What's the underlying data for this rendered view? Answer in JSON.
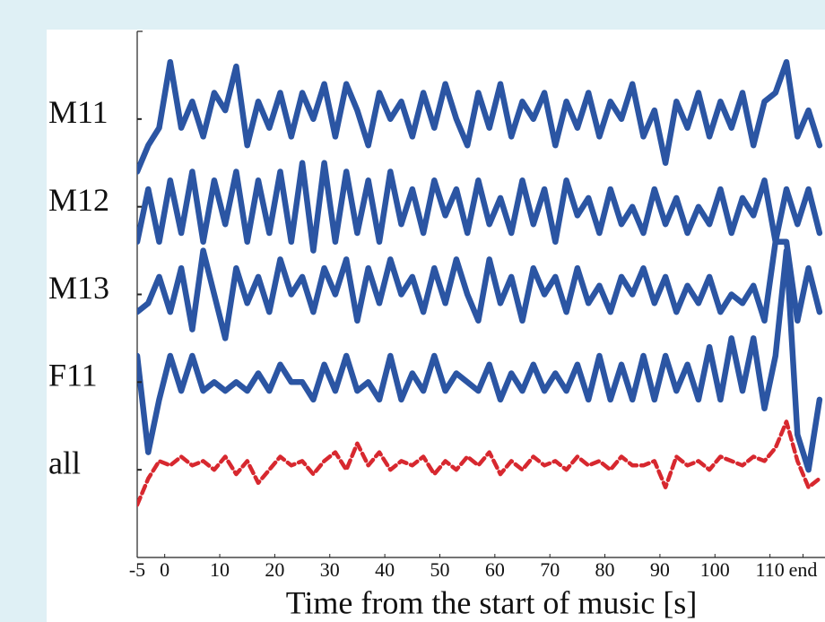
{
  "chart_data": {
    "type": "line",
    "xlabel": "Time from the start of music [s]",
    "x": [
      -5,
      -3,
      -1,
      1,
      3,
      5,
      7,
      9,
      11,
      13,
      15,
      17,
      19,
      21,
      23,
      25,
      27,
      29,
      31,
      33,
      35,
      37,
      39,
      41,
      43,
      45,
      47,
      49,
      51,
      53,
      55,
      57,
      59,
      61,
      63,
      65,
      67,
      69,
      71,
      73,
      75,
      77,
      79,
      81,
      83,
      85,
      87,
      89,
      91,
      93,
      95,
      97,
      99,
      101,
      103,
      105,
      107,
      109,
      111,
      113,
      115,
      117,
      119
    ],
    "xlim": [
      -5,
      120
    ],
    "xticks": [
      -5,
      0,
      10,
      20,
      30,
      40,
      50,
      60,
      70,
      80,
      90,
      100,
      110,
      {
        "value": 116,
        "label": "end"
      }
    ],
    "ylim": [
      -1,
      5
    ],
    "yticks": [
      {
        "value": 0,
        "label": "all"
      },
      {
        "value": 1,
        "label": "F11"
      },
      {
        "value": 2,
        "label": "M13"
      },
      {
        "value": 3,
        "label": "M12"
      },
      {
        "value": 4,
        "label": "M11"
      }
    ],
    "series": [
      {
        "color": "#2b55a3",
        "values": [
          3.4,
          3.7,
          3.9,
          4.65,
          3.9,
          4.2,
          3.8,
          4.3,
          4.1,
          4.6,
          3.7,
          4.2,
          3.9,
          4.3,
          3.8,
          4.3,
          4.0,
          4.4,
          3.8,
          4.4,
          4.1,
          3.7,
          4.3,
          4.0,
          4.2,
          3.8,
          4.3,
          3.9,
          4.4,
          4.0,
          3.7,
          4.3,
          3.9,
          4.4,
          3.8,
          4.2,
          4.0,
          4.3,
          3.7,
          4.2,
          3.9,
          4.3,
          3.8,
          4.2,
          4.0,
          4.4,
          3.8,
          4.1,
          3.5,
          4.2,
          3.9,
          4.3,
          3.8,
          4.2,
          3.9,
          4.3,
          3.7,
          4.2,
          4.3,
          4.65,
          3.8,
          4.1,
          3.7
        ]
      },
      {
        "color": "#2b55a3",
        "values": [
          2.6,
          3.2,
          2.6,
          3.3,
          2.7,
          3.4,
          2.6,
          3.3,
          2.8,
          3.4,
          2.6,
          3.3,
          2.7,
          3.4,
          2.6,
          3.5,
          2.5,
          3.5,
          2.6,
          3.4,
          2.7,
          3.3,
          2.6,
          3.4,
          2.8,
          3.2,
          2.7,
          3.3,
          2.9,
          3.2,
          2.7,
          3.3,
          2.8,
          3.1,
          2.7,
          3.3,
          2.8,
          3.2,
          2.6,
          3.3,
          2.9,
          3.1,
          2.7,
          3.2,
          2.8,
          3.0,
          2.7,
          3.2,
          2.8,
          3.1,
          2.7,
          3.0,
          2.8,
          3.2,
          2.7,
          3.1,
          2.9,
          3.3,
          2.6,
          3.2,
          2.8,
          3.2,
          2.7
        ]
      },
      {
        "color": "#2b55a3",
        "values": [
          1.8,
          1.9,
          2.2,
          1.8,
          2.3,
          1.6,
          2.5,
          2.0,
          1.5,
          2.3,
          1.9,
          2.2,
          1.8,
          2.4,
          2.0,
          2.2,
          1.8,
          2.3,
          2.0,
          2.4,
          1.7,
          2.3,
          1.9,
          2.4,
          2.0,
          2.2,
          1.8,
          2.3,
          1.9,
          2.4,
          2.0,
          1.7,
          2.4,
          1.9,
          2.2,
          1.7,
          2.3,
          2.0,
          2.2,
          1.8,
          2.3,
          1.9,
          2.1,
          1.8,
          2.2,
          2.0,
          2.3,
          1.9,
          2.2,
          1.8,
          2.1,
          1.9,
          2.2,
          1.8,
          2.0,
          1.9,
          2.1,
          1.7,
          2.6,
          2.6,
          1.7,
          2.3,
          1.8
        ]
      },
      {
        "color": "#2b55a3",
        "values": [
          1.3,
          0.2,
          0.8,
          1.3,
          0.9,
          1.3,
          0.9,
          1.0,
          0.9,
          1.0,
          0.9,
          1.1,
          0.9,
          1.2,
          1.0,
          1.0,
          0.8,
          1.2,
          0.9,
          1.3,
          0.9,
          1.0,
          0.8,
          1.3,
          0.8,
          1.1,
          0.9,
          1.3,
          0.9,
          1.1,
          1.0,
          0.9,
          1.2,
          0.8,
          1.1,
          0.9,
          1.2,
          0.9,
          1.1,
          0.9,
          1.2,
          0.8,
          1.3,
          0.8,
          1.2,
          0.8,
          1.3,
          0.8,
          1.3,
          0.9,
          1.2,
          0.8,
          1.4,
          0.8,
          1.5,
          0.9,
          1.5,
          0.7,
          1.3,
          2.5,
          0.4,
          0.0,
          0.8
        ]
      },
      {
        "color": "#d7282f",
        "dashed": true,
        "values": [
          -0.4,
          -0.1,
          0.1,
          0.05,
          0.15,
          0.05,
          0.1,
          0.0,
          0.15,
          -0.05,
          0.1,
          -0.15,
          0.0,
          0.15,
          0.05,
          0.1,
          -0.05,
          0.1,
          0.2,
          0.0,
          0.3,
          0.05,
          0.2,
          0.0,
          0.1,
          0.05,
          0.15,
          -0.05,
          0.1,
          0.0,
          0.15,
          0.05,
          0.2,
          -0.05,
          0.1,
          0.0,
          0.15,
          0.05,
          0.1,
          0.0,
          0.15,
          0.05,
          0.1,
          0.0,
          0.15,
          0.05,
          0.05,
          0.1,
          -0.2,
          0.15,
          0.05,
          0.1,
          0.0,
          0.15,
          0.1,
          0.05,
          0.15,
          0.1,
          0.25,
          0.55,
          0.1,
          -0.2,
          -0.1
        ]
      }
    ]
  }
}
